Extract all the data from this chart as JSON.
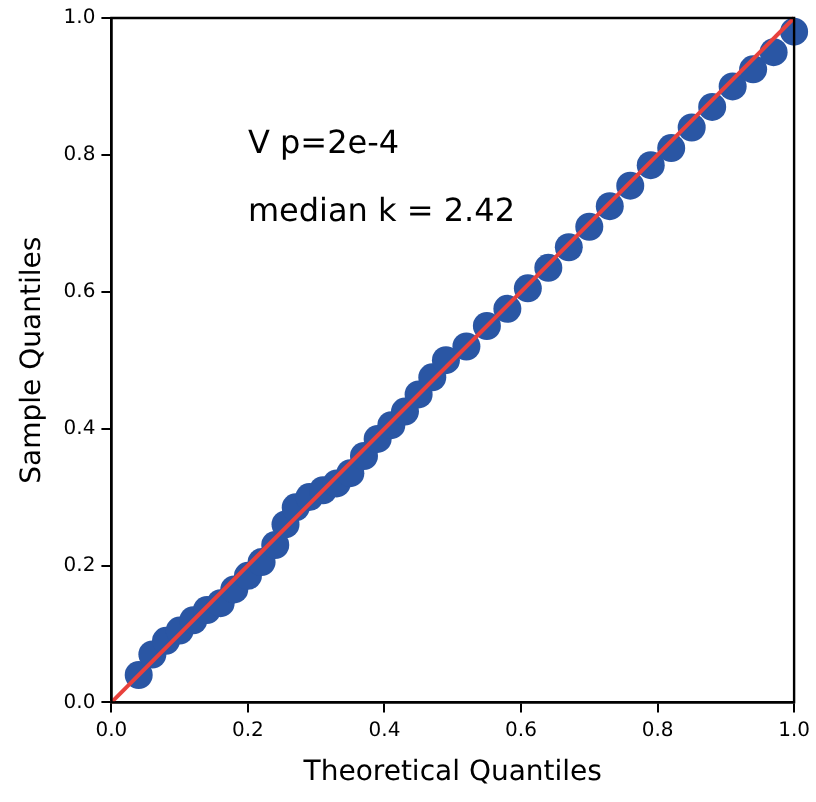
{
  "chart_data": {
    "type": "scatter",
    "xlabel": "Theoretical Quantiles",
    "ylabel": "Sample Quantiles",
    "annotations": [
      "V p=2e-4",
      "median k = 2.42"
    ],
    "xlim": [
      0,
      1
    ],
    "ylim": [
      0,
      1
    ],
    "xticks": [
      {
        "value": 0,
        "label": "0.0"
      },
      0.2,
      0.4,
      0.6,
      0.8,
      {
        "value": 1,
        "label": "1.0"
      }
    ],
    "yticks": [
      {
        "value": 0,
        "label": "0.0"
      },
      0.2,
      0.4,
      0.6,
      0.8,
      {
        "value": 1,
        "label": "1.0"
      }
    ],
    "grid": false,
    "legend": false,
    "marker": "circle",
    "series": [
      {
        "color": "#2a56a4",
        "x": [
          0.04,
          0.06,
          0.08,
          0.1,
          0.12,
          0.14,
          0.16,
          0.18,
          0.2,
          0.22,
          0.24,
          0.255,
          0.27,
          0.29,
          0.31,
          0.33,
          0.35,
          0.37,
          0.39,
          0.41,
          0.43,
          0.45,
          0.47,
          0.49,
          0.52,
          0.55,
          0.58,
          0.61,
          0.64,
          0.67,
          0.7,
          0.73,
          0.76,
          0.79,
          0.82,
          0.85,
          0.88,
          0.91,
          0.94,
          0.97,
          1.0
        ],
        "values": [
          0.04,
          0.07,
          0.09,
          0.105,
          0.12,
          0.135,
          0.145,
          0.165,
          0.185,
          0.205,
          0.23,
          0.26,
          0.285,
          0.3,
          0.31,
          0.32,
          0.335,
          0.36,
          0.385,
          0.405,
          0.425,
          0.45,
          0.475,
          0.5,
          0.52,
          0.55,
          0.575,
          0.605,
          0.635,
          0.665,
          0.695,
          0.725,
          0.755,
          0.785,
          0.81,
          0.84,
          0.87,
          0.9,
          0.925,
          0.95,
          0.98
        ]
      },
      {
        "type": "line",
        "color": "#e8413c",
        "x": [
          0,
          1
        ],
        "values": [
          0,
          1
        ],
        "marker": "none"
      }
    ]
  }
}
